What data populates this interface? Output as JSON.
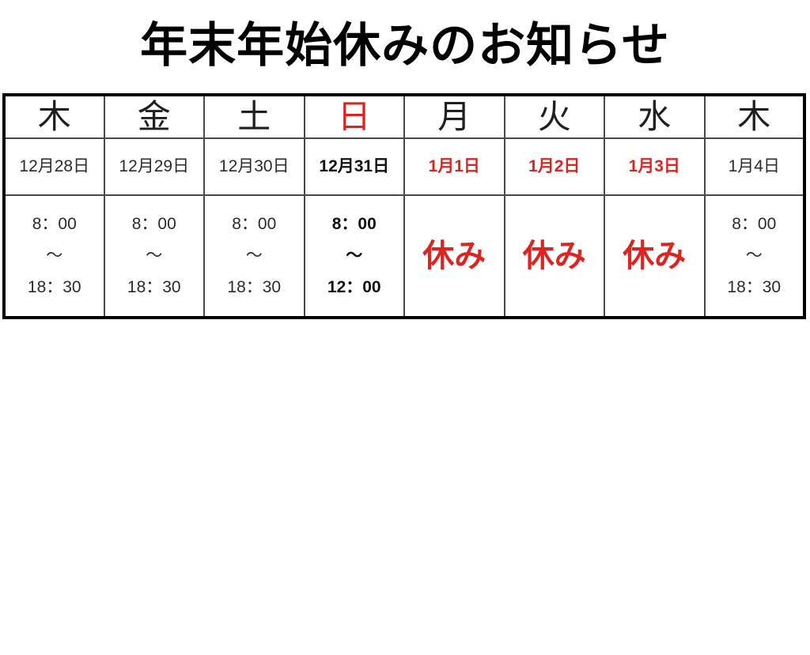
{
  "page": {
    "title": "年末年始休みのお知らせ"
  },
  "colors": {
    "accent_red": "#dc2420",
    "text_black": "#1f1f1f",
    "outer_border": "#000000",
    "inner_grid": "#4a4a4a",
    "background": "#ffffff"
  },
  "cols": [
    {
      "day": "木",
      "date": "12月28日",
      "open": "8：00",
      "tilde": "～",
      "close": "18：30"
    },
    {
      "day": "金",
      "date": "12月29日",
      "open": "8：00",
      "tilde": "～",
      "close": "18：30"
    },
    {
      "day": "土",
      "date": "12月30日",
      "open": "8：00",
      "tilde": "～",
      "close": "18：30"
    },
    {
      "day": "日",
      "date": "12月31日",
      "open": "8：00",
      "tilde": "～",
      "close": "12：00"
    },
    {
      "day": "月",
      "date": "1月1日",
      "closed_label": "休み"
    },
    {
      "day": "火",
      "date": "1月2日",
      "closed_label": "休み"
    },
    {
      "day": "水",
      "date": "1月3日",
      "closed_label": "休み"
    },
    {
      "day": "木",
      "date": "1月4日",
      "open": "8：00",
      "tilde": "～",
      "close": "18：30"
    }
  ]
}
